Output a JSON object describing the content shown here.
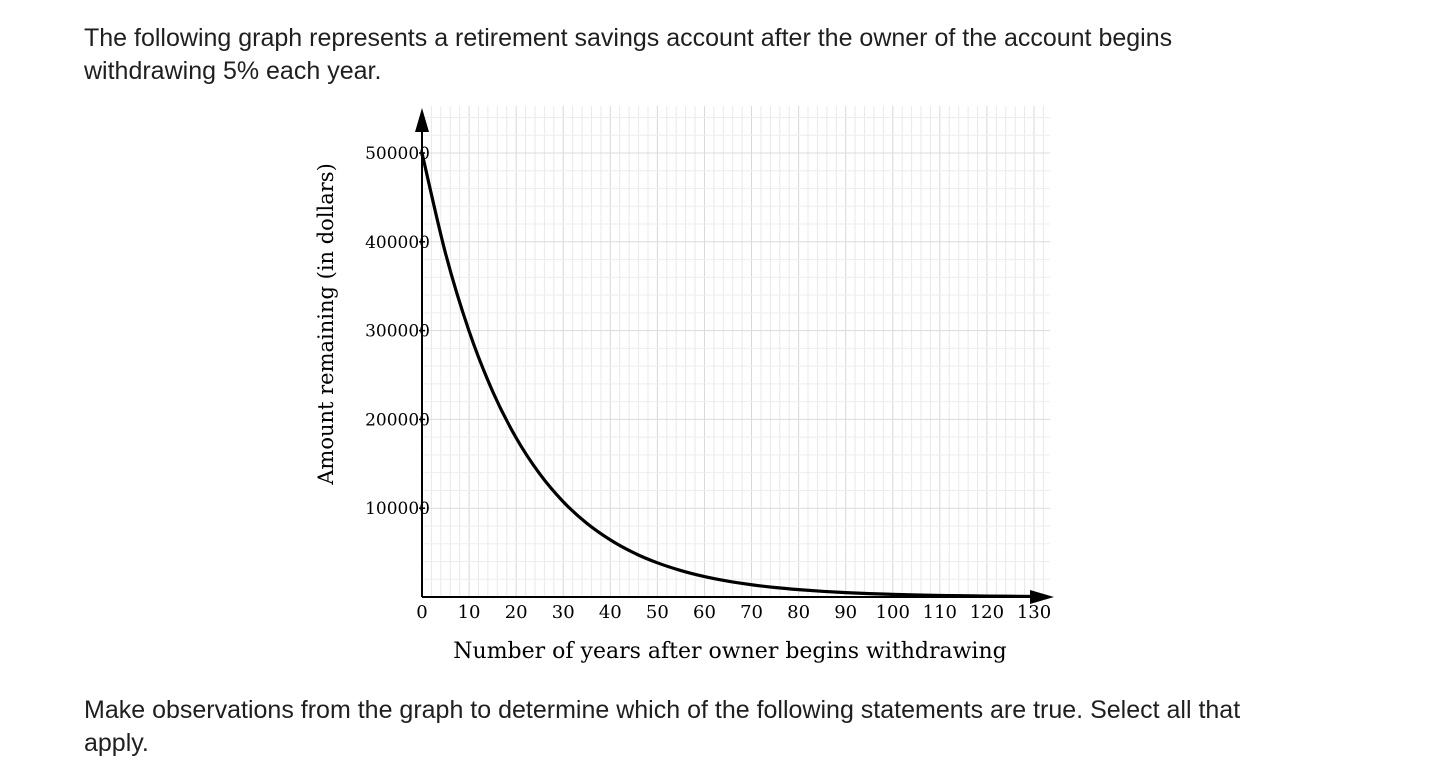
{
  "question": {
    "intro_text": "The following graph represents a retirement savings account after the owner of the account begins withdrawing 5% each year.",
    "instruction_text": "Make observations from the graph to determine which of the following statements are true. Select all that apply."
  },
  "chart_data": {
    "type": "line",
    "title": "",
    "xlabel": "Number of years after owner begins withdrawing",
    "ylabel": "Amount remaining (in dollars)",
    "xlim": [
      0,
      130
    ],
    "ylim": [
      0,
      500000
    ],
    "x_ticks": [
      0,
      10,
      20,
      30,
      40,
      50,
      60,
      70,
      80,
      90,
      100,
      110,
      120,
      130
    ],
    "x_tick_labels": [
      "0",
      "10",
      "20",
      "30",
      "40",
      "50",
      "60",
      "70",
      "80",
      "90",
      "100",
      "110",
      "120",
      "130"
    ],
    "y_ticks": [
      100000,
      200000,
      300000,
      400000,
      500000
    ],
    "y_tick_labels": [
      "100000",
      "200000",
      "300000",
      "400000",
      "500000"
    ],
    "grid": true,
    "line_color": "#000000",
    "series": [
      {
        "x": [
          0,
          5,
          10,
          15,
          20,
          25,
          30,
          35,
          40,
          45,
          50,
          55,
          60,
          65,
          70,
          75,
          80,
          85,
          90,
          95,
          100,
          105,
          110,
          115,
          120,
          125,
          130
        ],
        "values": [
          500000,
          386900,
          299400,
          231600,
          179200,
          138700,
          107300,
          83000,
          64300,
          49700,
          38500,
          29800,
          23000,
          17800,
          13800,
          10700,
          8300,
          6400,
          4900,
          3800,
          2960,
          2290,
          1770,
          1370,
          1060,
          820,
          640
        ]
      }
    ]
  }
}
